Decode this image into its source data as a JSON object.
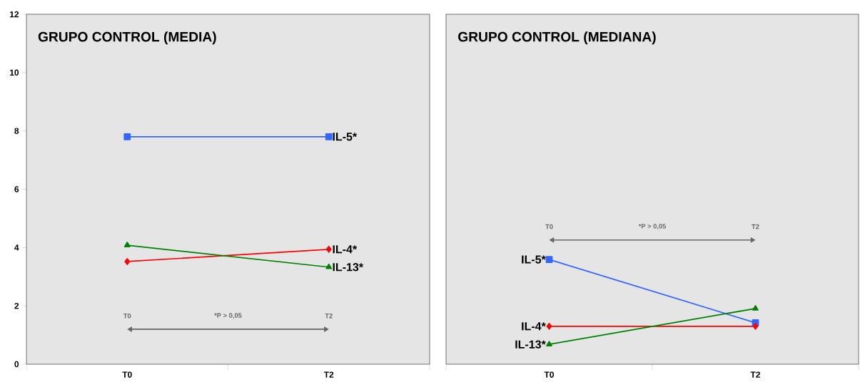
{
  "chart_data": [
    {
      "type": "line",
      "title": "GRUPO CONTROL (MEDIA)",
      "categories": [
        "T0",
        "T2"
      ],
      "ylim": [
        0,
        12
      ],
      "yticks": [
        0,
        2,
        4,
        6,
        8,
        10,
        12
      ],
      "grid": false,
      "legend": false,
      "series": [
        {
          "name": "IL-5*",
          "color": "#3366ff",
          "marker": "square",
          "values": [
            7.8,
            7.8
          ]
        },
        {
          "name": "IL-4*",
          "color": "#ff0000",
          "marker": "diamond",
          "values": [
            3.52,
            3.94
          ]
        },
        {
          "name": "IL-13*",
          "color": "#008000",
          "marker": "triangle",
          "values": [
            4.08,
            3.33
          ]
        }
      ],
      "annotations": [
        "T0",
        "*P > 0,05",
        "T2"
      ]
    },
    {
      "type": "line",
      "title": "GRUPO CONTROL (MEDIANA)",
      "categories": [
        "T0",
        "T2"
      ],
      "ylim": [
        0,
        12
      ],
      "tick_labels": "x",
      "grid": false,
      "legend": false,
      "series": [
        {
          "name": "IL-5*",
          "color": "#3366ff",
          "marker": "square",
          "values": [
            3.59,
            1.42
          ]
        },
        {
          "name": "IL-4*",
          "color": "#ff0000",
          "marker": "diamond",
          "values": [
            1.3,
            1.3
          ]
        },
        {
          "name": "IL-13*",
          "color": "#008000",
          "marker": "triangle",
          "values": [
            0.68,
            1.91
          ]
        }
      ],
      "annotations": [
        "T0",
        "*P > 0,05",
        "T2"
      ]
    }
  ]
}
